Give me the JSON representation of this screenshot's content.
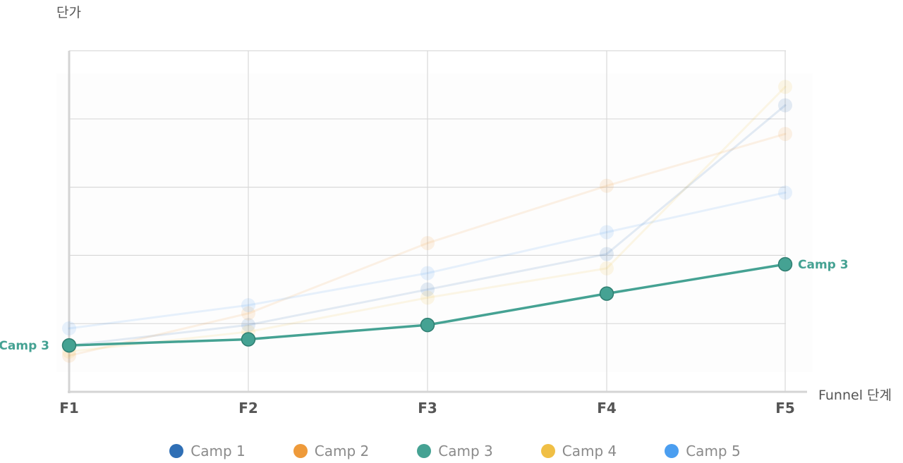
{
  "chart_data": {
    "type": "line",
    "title": "",
    "xlabel": "Funnel 단계",
    "ylabel": "단가",
    "categories": [
      "F1",
      "F2",
      "F3",
      "F4",
      "F5"
    ],
    "ylim": [
      0,
      500
    ],
    "ytick_step": 100,
    "y_tick_labels_shown": false,
    "grid": true,
    "legend_position": "bottom",
    "highlighted_series": "Camp 3",
    "series": [
      {
        "name": "Camp 1",
        "color": "#2f6fb5",
        "values": [
          68,
          98,
          150,
          202,
          420
        ]
      },
      {
        "name": "Camp 2",
        "color": "#ee9a3a",
        "values": [
          53,
          115,
          218,
          302,
          378
        ]
      },
      {
        "name": "Camp 3",
        "color": "#45a293",
        "values": [
          68,
          77,
          98,
          144,
          187
        ]
      },
      {
        "name": "Camp 4",
        "color": "#f0bf45",
        "values": [
          59,
          88,
          138,
          181,
          447
        ]
      },
      {
        "name": "Camp 5",
        "color": "#4b9ef0",
        "values": [
          93,
          127,
          174,
          234,
          292
        ]
      }
    ],
    "end_labels": {
      "left": "Camp 3",
      "right": "Camp 3"
    }
  }
}
